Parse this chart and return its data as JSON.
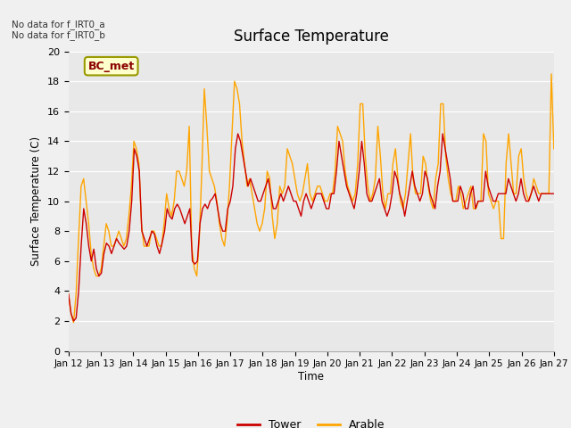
{
  "title": "Surface Temperature",
  "ylabel": "Surface Temperature (C)",
  "xlabel": "Time",
  "ylim": [
    0,
    20
  ],
  "note1": "No data for f_IRT0_a",
  "note2": "No data for f_IRT0_b",
  "bc_met_label": "BC_met",
  "legend_tower": "Tower",
  "legend_arable": "Arable",
  "tower_color": "#cc0000",
  "arable_color": "#ffa500",
  "fig_facecolor": "#f0f0f0",
  "plot_facecolor": "#e8e8e8",
  "x_tick_labels": [
    "Jan 12",
    "Jan 13",
    "Jan 14",
    "Jan 15",
    "Jan 16",
    "Jan 17",
    "Jan 18",
    "Jan 19",
    "Jan 20",
    "Jan 21",
    "Jan 22",
    "Jan 23",
    "Jan 24",
    "Jan 25",
    "Jan 26",
    "Jan 27"
  ],
  "tower_data": [
    3.8,
    2.5,
    2.0,
    2.2,
    4.0,
    7.0,
    9.5,
    8.5,
    7.0,
    6.0,
    6.8,
    5.5,
    5.0,
    5.2,
    6.5,
    7.2,
    7.0,
    6.5,
    7.0,
    7.5,
    7.2,
    7.0,
    6.8,
    7.0,
    8.0,
    10.0,
    13.5,
    13.0,
    12.0,
    8.0,
    7.5,
    7.0,
    7.5,
    8.0,
    7.8,
    7.0,
    6.5,
    7.2,
    8.0,
    9.5,
    9.0,
    8.8,
    9.5,
    9.8,
    9.5,
    9.0,
    8.5,
    9.0,
    9.5,
    6.0,
    5.8,
    6.0,
    8.5,
    9.5,
    9.8,
    9.5,
    10.0,
    10.2,
    10.5,
    9.5,
    8.5,
    8.0,
    8.0,
    9.5,
    10.0,
    11.0,
    13.5,
    14.5,
    14.0,
    13.0,
    12.0,
    11.0,
    11.5,
    11.0,
    10.5,
    10.0,
    10.0,
    10.5,
    11.0,
    11.5,
    10.5,
    9.5,
    9.5,
    10.0,
    10.5,
    10.0,
    10.5,
    11.0,
    10.5,
    10.0,
    10.0,
    9.5,
    9.0,
    10.0,
    10.5,
    10.0,
    9.5,
    10.0,
    10.5,
    10.5,
    10.5,
    10.0,
    9.5,
    9.5,
    10.5,
    10.5,
    12.0,
    14.0,
    13.0,
    12.0,
    11.0,
    10.5,
    10.0,
    9.5,
    10.5,
    12.0,
    14.0,
    12.5,
    10.5,
    10.0,
    10.0,
    10.5,
    11.0,
    11.5,
    10.0,
    9.5,
    9.0,
    9.5,
    10.5,
    12.0,
    11.5,
    10.5,
    10.0,
    9.0,
    10.0,
    11.0,
    12.0,
    11.0,
    10.5,
    10.0,
    10.5,
    12.0,
    11.5,
    10.5,
    10.0,
    9.5,
    11.0,
    12.0,
    14.5,
    13.5,
    12.5,
    11.5,
    10.0,
    10.0,
    10.0,
    11.0,
    10.5,
    9.5,
    9.5,
    10.5,
    11.0,
    9.5,
    10.0,
    10.0,
    10.0,
    12.0,
    11.0,
    10.5,
    10.0,
    10.0,
    10.5,
    10.5,
    10.5,
    10.5,
    11.5,
    11.0,
    10.5,
    10.0,
    10.5,
    11.5,
    10.5,
    10.0,
    10.0,
    10.5,
    11.0,
    10.5,
    10.0,
    10.5,
    10.5,
    10.5,
    10.5,
    10.5,
    10.5
  ],
  "arable_data": [
    3.8,
    2.5,
    1.9,
    3.8,
    7.5,
    11.0,
    11.5,
    10.0,
    8.5,
    6.5,
    5.5,
    5.0,
    5.0,
    5.5,
    7.0,
    8.5,
    8.0,
    7.0,
    7.0,
    7.5,
    8.0,
    7.5,
    7.0,
    7.5,
    9.0,
    11.0,
    14.0,
    13.5,
    12.5,
    8.5,
    7.0,
    7.0,
    7.0,
    8.0,
    8.0,
    7.5,
    7.0,
    7.0,
    8.5,
    10.5,
    9.5,
    9.0,
    10.0,
    12.0,
    12.0,
    11.5,
    11.0,
    12.0,
    15.0,
    7.0,
    5.5,
    5.0,
    7.5,
    12.0,
    17.5,
    15.0,
    12.0,
    11.5,
    11.0,
    10.0,
    8.5,
    7.5,
    7.0,
    8.5,
    11.0,
    14.5,
    18.0,
    17.5,
    16.5,
    14.0,
    12.5,
    11.0,
    11.5,
    10.5,
    9.5,
    8.5,
    8.0,
    8.5,
    9.5,
    12.0,
    11.5,
    9.0,
    7.5,
    8.5,
    11.0,
    10.5,
    11.0,
    13.5,
    13.0,
    12.5,
    11.5,
    10.5,
    10.0,
    10.5,
    11.5,
    12.5,
    10.5,
    10.0,
    10.5,
    11.0,
    11.0,
    10.5,
    10.0,
    10.0,
    10.5,
    10.5,
    12.0,
    15.0,
    14.5,
    14.0,
    12.0,
    11.0,
    10.5,
    10.0,
    10.5,
    12.5,
    16.5,
    16.5,
    13.0,
    11.0,
    10.0,
    10.5,
    11.5,
    15.0,
    13.0,
    10.5,
    9.5,
    10.5,
    10.5,
    12.5,
    13.5,
    11.5,
    10.0,
    9.5,
    10.5,
    12.5,
    14.5,
    11.5,
    10.5,
    10.5,
    10.5,
    13.0,
    12.5,
    11.0,
    10.0,
    9.5,
    11.5,
    12.5,
    16.5,
    16.5,
    13.0,
    11.5,
    10.5,
    10.0,
    10.0,
    11.0,
    10.5,
    9.5,
    10.0,
    10.5,
    11.0,
    9.5,
    9.5,
    10.0,
    10.0,
    14.5,
    14.0,
    10.5,
    10.0,
    9.5,
    10.0,
    10.0,
    7.5,
    7.5,
    12.5,
    14.5,
    12.5,
    10.5,
    10.5,
    13.0,
    13.5,
    11.5,
    10.5,
    10.0,
    10.5,
    11.5,
    11.0,
    10.5,
    10.5,
    10.5,
    10.5,
    10.5,
    18.5,
    13.5
  ]
}
